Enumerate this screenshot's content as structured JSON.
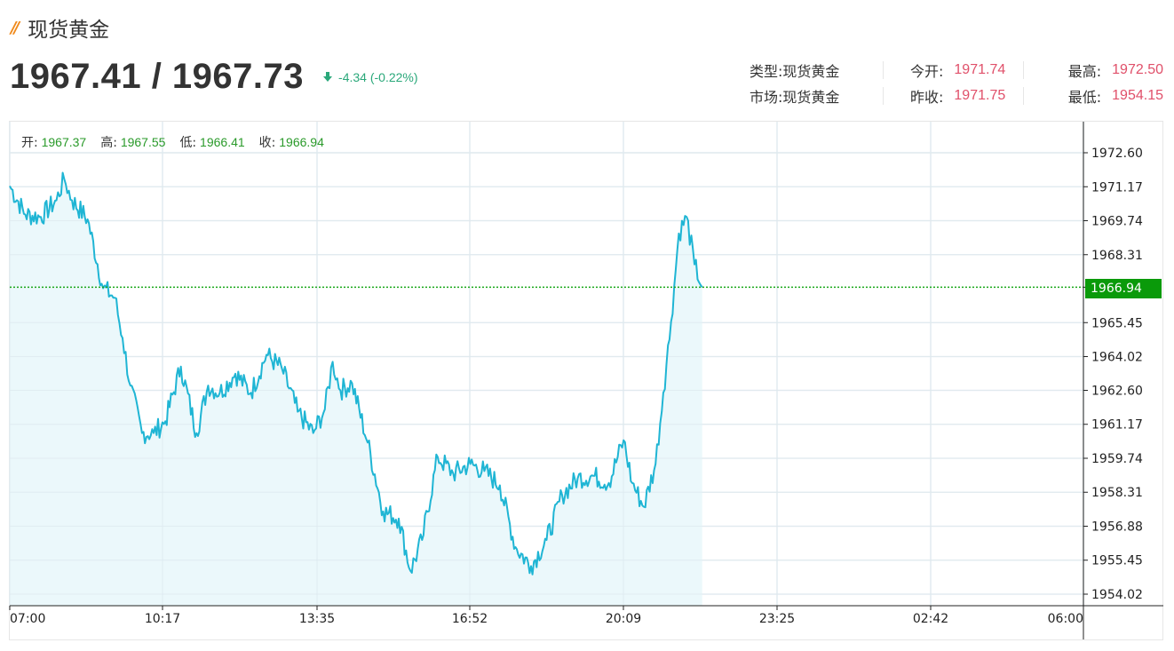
{
  "header": {
    "title_mark": "//",
    "title": "现货黄金",
    "price": "1967.41 / 1967.73",
    "change": "-4.34 (-0.22%)",
    "change_direction": "down",
    "change_color": "#2aa87a"
  },
  "stats": {
    "type_label": "类型:",
    "type_value": "现货黄金",
    "market_label": "市场:",
    "market_value": "现货黄金",
    "open_label": "今开:",
    "open_value": "1971.74",
    "prev_close_label": "昨收:",
    "prev_close_value": "1971.75",
    "high_label": "最高:",
    "high_value": "1972.50",
    "low_label": "最低:",
    "low_value": "1954.15",
    "value_color": "#e0506a"
  },
  "ohlc": {
    "open_label": "开:",
    "open": "1967.37",
    "high_label": "高:",
    "high": "1967.55",
    "low_label": "低:",
    "low": "1966.41",
    "close_label": "收:",
    "close": "1966.94"
  },
  "last_price_badge": "1966.94",
  "colors": {
    "line": "#1fb5d4",
    "area": "#e8f7fa",
    "last_line": "#19a619",
    "badge": "#0a9a0a"
  },
  "chart_data": {
    "type": "area",
    "title": "现货黄金",
    "xlabel": "",
    "ylabel": "",
    "x_ticks": [
      "07:00",
      "10:17",
      "13:35",
      "16:52",
      "20:09",
      "23:25",
      "02:42",
      "06:00"
    ],
    "y_ticks": [
      1972.6,
      1971.17,
      1969.74,
      1968.31,
      1966.94,
      1965.45,
      1964.02,
      1962.6,
      1961.17,
      1959.74,
      1958.31,
      1956.88,
      1955.45,
      1954.02
    ],
    "ylim": [
      1953.9,
      1973.0
    ],
    "grid": true,
    "last_price": 1966.94,
    "series": [
      {
        "name": "现货黄金",
        "x": [
          "07:00",
          "07:20",
          "07:40",
          "08:00",
          "08:10",
          "08:20",
          "08:40",
          "09:00",
          "09:15",
          "09:25",
          "09:35",
          "09:50",
          "10:05",
          "10:20",
          "10:40",
          "11:00",
          "11:15",
          "11:30",
          "11:50",
          "12:10",
          "12:30",
          "12:50",
          "13:10",
          "13:30",
          "13:45",
          "13:55",
          "14:05",
          "14:20",
          "14:40",
          "15:00",
          "15:20",
          "15:35",
          "15:50",
          "16:10",
          "16:30",
          "16:52",
          "17:10",
          "17:30",
          "17:50",
          "18:10",
          "18:30",
          "18:50",
          "19:10",
          "19:30",
          "19:50",
          "20:09",
          "20:20",
          "20:35",
          "20:50",
          "21:00",
          "21:10",
          "21:20",
          "21:30",
          "21:40",
          "21:50"
        ],
        "values": [
          1971.2,
          1970.0,
          1969.9,
          1970.6,
          1971.5,
          1970.6,
          1969.8,
          1966.9,
          1966.5,
          1964.8,
          1962.8,
          1960.8,
          1960.8,
          1961.3,
          1963.6,
          1960.8,
          1962.8,
          1962.5,
          1963.3,
          1962.5,
          1964.1,
          1963.5,
          1961.7,
          1960.8,
          1961.8,
          1963.8,
          1962.6,
          1962.9,
          1960.4,
          1957.5,
          1957.2,
          1955.0,
          1956.3,
          1959.8,
          1959.1,
          1959.5,
          1959.2,
          1958.6,
          1956.0,
          1955.2,
          1956.3,
          1958.2,
          1958.9,
          1959.0,
          1958.7,
          1960.5,
          1958.7,
          1957.7,
          1959.5,
          1962.5,
          1965.5,
          1969.2,
          1969.9,
          1967.9,
          1966.94
        ]
      }
    ]
  }
}
